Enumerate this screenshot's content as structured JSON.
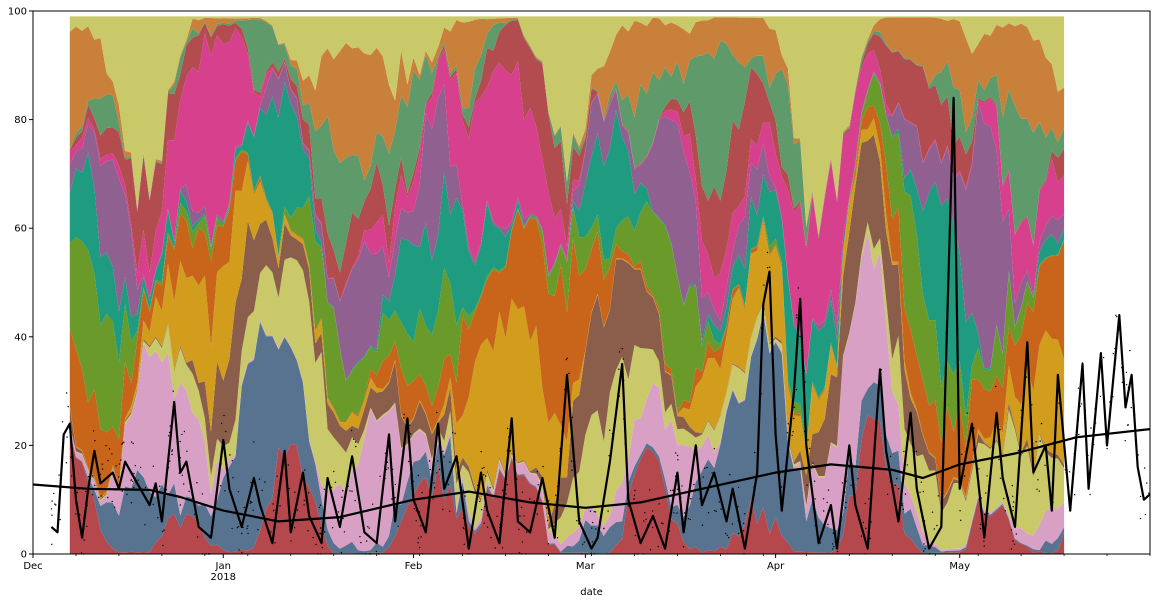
{
  "chart_data": {
    "type": "area",
    "title": "",
    "xlabel": "date",
    "ylabel": "",
    "x_range": [
      "2017-12-01",
      "2018-06-01"
    ],
    "ylim": [
      0,
      100
    ],
    "grid": false,
    "legend": "none",
    "y_ticks": [
      0,
      20,
      40,
      60,
      80,
      100
    ],
    "x_ticks": [
      {
        "date": "2017-12-01",
        "label": "Dec",
        "sublabel": ""
      },
      {
        "date": "2018-01-01",
        "label": "Jan",
        "sublabel": "2018"
      },
      {
        "date": "2018-02-01",
        "label": "Feb",
        "sublabel": ""
      },
      {
        "date": "2018-03-01",
        "label": "Mar",
        "sublabel": ""
      },
      {
        "date": "2018-04-01",
        "label": "Apr",
        "sublabel": ""
      },
      {
        "date": "2018-05-01",
        "label": "May",
        "sublabel": ""
      }
    ],
    "stacked_area": {
      "start_date": "2017-12-07",
      "end_date": "2018-05-18",
      "approx_total": 99,
      "colors": [
        "#b5484c",
        "#57738f",
        "#d9a0c6",
        "#c9c96a",
        "#8a5e4a",
        "#d29d1c",
        "#c9651a",
        "#6a9a2a",
        "#1f9c7f",
        "#8f6090",
        "#d6408c",
        "#b34c4f",
        "#5f9a6a",
        "#c9803a",
        "#c9c96a"
      ],
      "note": "stacked composition, approximately 15 series summing to ~99, values fluctuating strongly day to day"
    },
    "lines": [
      {
        "style": "thick-black",
        "description": "noisy series with peaks",
        "points": [
          [
            "2017-12-04",
            5
          ],
          [
            "2017-12-05",
            4
          ],
          [
            "2017-12-06",
            22
          ],
          [
            "2017-12-07",
            24
          ],
          [
            "2017-12-08",
            10
          ],
          [
            "2017-12-09",
            3
          ],
          [
            "2017-12-10",
            12
          ],
          [
            "2017-12-11",
            19
          ],
          [
            "2017-12-12",
            13
          ],
          [
            "2017-12-14",
            15
          ],
          [
            "2017-12-15",
            12
          ],
          [
            "2017-12-16",
            17
          ],
          [
            "2017-12-18",
            13
          ],
          [
            "2017-12-20",
            9
          ],
          [
            "2017-12-21",
            13
          ],
          [
            "2017-12-22",
            6
          ],
          [
            "2017-12-24",
            28
          ],
          [
            "2017-12-25",
            15
          ],
          [
            "2017-12-26",
            17
          ],
          [
            "2017-12-28",
            5
          ],
          [
            "2017-12-30",
            3
          ],
          [
            "2018-01-01",
            21
          ],
          [
            "2018-01-02",
            12
          ],
          [
            "2018-01-04",
            5
          ],
          [
            "2018-01-06",
            14
          ],
          [
            "2018-01-07",
            9
          ],
          [
            "2018-01-09",
            2
          ],
          [
            "2018-01-11",
            19
          ],
          [
            "2018-01-12",
            4
          ],
          [
            "2018-01-14",
            15
          ],
          [
            "2018-01-15",
            7
          ],
          [
            "2018-01-17",
            2
          ],
          [
            "2018-01-18",
            14
          ],
          [
            "2018-01-20",
            5
          ],
          [
            "2018-01-22",
            18
          ],
          [
            "2018-01-24",
            4
          ],
          [
            "2018-01-26",
            2
          ],
          [
            "2018-01-28",
            22
          ],
          [
            "2018-01-29",
            6
          ],
          [
            "2018-01-31",
            25
          ],
          [
            "2018-02-01",
            10
          ],
          [
            "2018-02-03",
            4
          ],
          [
            "2018-02-05",
            24
          ],
          [
            "2018-02-06",
            12
          ],
          [
            "2018-02-08",
            18
          ],
          [
            "2018-02-10",
            1
          ],
          [
            "2018-02-12",
            15
          ],
          [
            "2018-02-13",
            8
          ],
          [
            "2018-02-15",
            2
          ],
          [
            "2018-02-17",
            25
          ],
          [
            "2018-02-18",
            6
          ],
          [
            "2018-02-20",
            4
          ],
          [
            "2018-02-22",
            14
          ],
          [
            "2018-02-24",
            3
          ],
          [
            "2018-02-26",
            33
          ],
          [
            "2018-02-28",
            6
          ],
          [
            "2018-03-02",
            1
          ],
          [
            "2018-03-03",
            3
          ],
          [
            "2018-03-05",
            17
          ],
          [
            "2018-03-07",
            35
          ],
          [
            "2018-03-08",
            10
          ],
          [
            "2018-03-10",
            2
          ],
          [
            "2018-03-12",
            7
          ],
          [
            "2018-03-14",
            1
          ],
          [
            "2018-03-16",
            15
          ],
          [
            "2018-03-17",
            4
          ],
          [
            "2018-03-19",
            20
          ],
          [
            "2018-03-20",
            9
          ],
          [
            "2018-03-22",
            15
          ],
          [
            "2018-03-24",
            6
          ],
          [
            "2018-03-25",
            12
          ],
          [
            "2018-03-27",
            1
          ],
          [
            "2018-03-29",
            15
          ],
          [
            "2018-03-30",
            46
          ],
          [
            "2018-03-31",
            52
          ],
          [
            "2018-04-01",
            22
          ],
          [
            "2018-04-02",
            8
          ],
          [
            "2018-04-04",
            30
          ],
          [
            "2018-04-05",
            47
          ],
          [
            "2018-04-06",
            20
          ],
          [
            "2018-04-08",
            2
          ],
          [
            "2018-04-10",
            9
          ],
          [
            "2018-04-11",
            1
          ],
          [
            "2018-04-13",
            20
          ],
          [
            "2018-04-14",
            9
          ],
          [
            "2018-04-16",
            1
          ],
          [
            "2018-04-18",
            34
          ],
          [
            "2018-04-19",
            19
          ],
          [
            "2018-04-21",
            6
          ],
          [
            "2018-04-23",
            26
          ],
          [
            "2018-04-24",
            12
          ],
          [
            "2018-04-26",
            1
          ],
          [
            "2018-04-28",
            5
          ],
          [
            "2018-04-30",
            84
          ],
          [
            "2018-05-01",
            12
          ],
          [
            "2018-05-03",
            24
          ],
          [
            "2018-05-05",
            3
          ],
          [
            "2018-05-07",
            26
          ],
          [
            "2018-05-08",
            14
          ],
          [
            "2018-05-10",
            5
          ],
          [
            "2018-05-12",
            39
          ],
          [
            "2018-05-13",
            15
          ],
          [
            "2018-05-15",
            20
          ],
          [
            "2018-05-16",
            8
          ],
          [
            "2018-05-17",
            33
          ],
          [
            "2018-05-19",
            8
          ],
          [
            "2018-05-21",
            35
          ],
          [
            "2018-05-22",
            12
          ],
          [
            "2018-05-24",
            37
          ],
          [
            "2018-05-25",
            20
          ],
          [
            "2018-05-27",
            44
          ],
          [
            "2018-05-28",
            27
          ],
          [
            "2018-05-29",
            33
          ],
          [
            "2018-05-30",
            16
          ],
          [
            "2018-05-31",
            10
          ],
          [
            "2018-06-01",
            11
          ]
        ]
      },
      {
        "style": "thick-black",
        "description": "slow smooth trend",
        "points": [
          [
            "2017-12-01",
            12.8
          ],
          [
            "2017-12-10",
            12.0
          ],
          [
            "2017-12-20",
            11.8
          ],
          [
            "2017-12-25",
            10.5
          ],
          [
            "2018-01-01",
            8.0
          ],
          [
            "2018-01-10",
            6.0
          ],
          [
            "2018-01-20",
            6.8
          ],
          [
            "2018-02-01",
            10.0
          ],
          [
            "2018-02-10",
            11.5
          ],
          [
            "2018-02-20",
            9.5
          ],
          [
            "2018-03-01",
            8.5
          ],
          [
            "2018-03-10",
            9.5
          ],
          [
            "2018-03-20",
            12.0
          ],
          [
            "2018-04-01",
            15.0
          ],
          [
            "2018-04-10",
            16.5
          ],
          [
            "2018-04-20",
            15.5
          ],
          [
            "2018-04-25",
            14.0
          ],
          [
            "2018-05-01",
            16.5
          ],
          [
            "2018-05-10",
            18.5
          ],
          [
            "2018-05-20",
            21.5
          ],
          [
            "2018-06-01",
            23.0
          ]
        ]
      }
    ]
  }
}
